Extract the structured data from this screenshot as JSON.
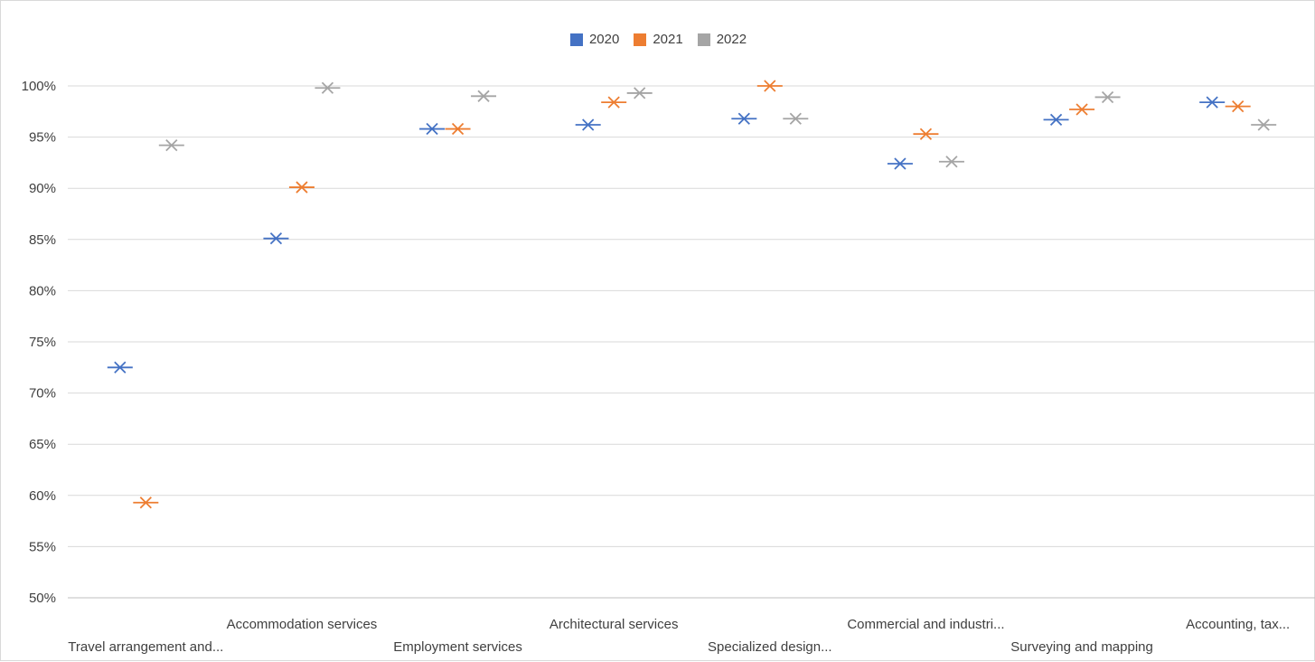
{
  "chart_data": {
    "type": "scatter",
    "categories": [
      "Travel arrangement and...",
      "Accommodation services",
      "Employment services",
      "Architectural services",
      "Specialized design...",
      "Commercial and industri...",
      "Surveying and mapping",
      "Accounting, tax..."
    ],
    "series": [
      {
        "name": "2020",
        "color": "#4472c4",
        "values": [
          72.5,
          85.1,
          95.8,
          96.2,
          96.8,
          92.4,
          96.7,
          98.4
        ]
      },
      {
        "name": "2021",
        "color": "#ed7d31",
        "values": [
          59.3,
          90.1,
          95.8,
          98.4,
          100.0,
          95.3,
          97.7,
          98.0
        ]
      },
      {
        "name": "2022",
        "color": "#a5a5a5",
        "values": [
          94.2,
          99.8,
          99.0,
          99.3,
          96.8,
          92.6,
          98.9,
          96.2
        ]
      }
    ],
    "marker": "x-with-dash",
    "ylim": [
      50,
      100
    ],
    "yticks": [
      "50%",
      "55%",
      "60%",
      "65%",
      "70%",
      "75%",
      "80%",
      "85%",
      "90%",
      "95%",
      "100%"
    ],
    "grid": true,
    "legend_position": "top"
  }
}
